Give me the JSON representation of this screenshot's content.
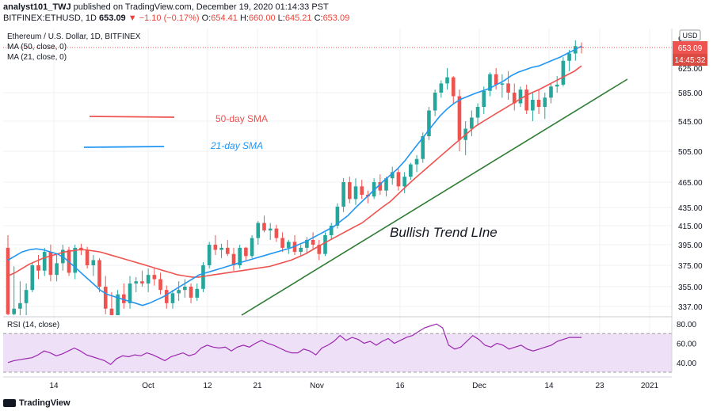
{
  "header": {
    "line1_author": "analyst101_TWJ",
    "line1_rest": "published on TradingView.com, December 19, 2020 01:14:33 PST",
    "line2_symbol": "BITFINEX:ETHUSD, 1D",
    "line2_price": "653.09",
    "line2_change": "▼ −1.10 (−0.17%)",
    "o_label": "O:",
    "o_val": "654.41",
    "h_label": "H:",
    "h_val": "660.00",
    "l_label": "L:",
    "l_val": "645.21",
    "c_label": "C:",
    "c_val": "653.09"
  },
  "legend": {
    "title": "Ethereum / U.S. Dollar, 1D, BITFINEX",
    "ma50": "MA (50, close, 0)",
    "ma21": "MA (21, close, 0)",
    "rsi": "RSI (14, close)"
  },
  "annotations": {
    "sma50_label": "50-day SMA",
    "sma21_label": "21-day SMA",
    "trend_label": "Bullish Trend LIne"
  },
  "price_box": {
    "currency": "USD",
    "last_price": "653.09",
    "countdown": "14:45:32",
    "top_partial": "6",
    "below_partial": "625.00"
  },
  "watermark": "TradingView",
  "colors": {
    "up": "#26a69a",
    "down": "#ef5350",
    "ma50": "#ef5350",
    "ma21": "#2196f3",
    "trend": "#2e7d32",
    "rsi": "#9c27b0",
    "rsi_band": "#ede0f7"
  },
  "chart_data": {
    "type": "candlestick",
    "title": "Ethereum / U.S. Dollar, 1D, BITFINEX",
    "y_ticks": [
      337,
      355,
      375,
      395,
      415,
      435,
      465,
      505,
      545,
      585
    ],
    "y_tick_labels": [
      "337.00",
      "355.00",
      "375.00",
      "395.00",
      "415.00",
      "435.00",
      "465.00",
      "505.00",
      "545.00",
      "585.00"
    ],
    "x_ticks": [
      "14",
      "Oct",
      "12",
      "21",
      "Nov",
      "16",
      "Dec",
      "14",
      "23",
      "2021"
    ],
    "candles": [
      [
        392,
        405,
        320,
        330
      ],
      [
        330,
        374,
        320,
        335
      ],
      [
        335,
        360,
        326,
        340
      ],
      [
        340,
        358,
        328,
        352
      ],
      [
        352,
        378,
        350,
        375
      ],
      [
        375,
        385,
        362,
        370
      ],
      [
        370,
        392,
        365,
        388
      ],
      [
        388,
        395,
        360,
        366
      ],
      [
        366,
        385,
        360,
        377
      ],
      [
        377,
        395,
        370,
        390
      ],
      [
        390,
        393,
        365,
        368
      ],
      [
        368,
        395,
        362,
        392
      ],
      [
        392,
        396,
        385,
        390
      ],
      [
        390,
        393,
        372,
        375
      ],
      [
        375,
        385,
        365,
        380
      ],
      [
        380,
        382,
        350,
        355
      ],
      [
        355,
        365,
        330,
        335
      ],
      [
        335,
        350,
        305,
        325
      ],
      [
        325,
        352,
        320,
        348
      ],
      [
        348,
        358,
        335,
        340
      ],
      [
        340,
        365,
        335,
        358
      ],
      [
        358,
        364,
        350,
        360
      ],
      [
        360,
        370,
        355,
        358
      ],
      [
        358,
        372,
        350,
        366
      ],
      [
        366,
        372,
        356,
        362
      ],
      [
        362,
        368,
        348,
        352
      ],
      [
        352,
        356,
        335,
        340
      ],
      [
        340,
        352,
        335,
        349
      ],
      [
        349,
        360,
        342,
        352
      ],
      [
        352,
        362,
        345,
        355
      ],
      [
        355,
        358,
        340,
        345
      ],
      [
        345,
        358,
        342,
        353
      ],
      [
        353,
        378,
        350,
        375
      ],
      [
        375,
        398,
        372,
        395
      ],
      [
        395,
        405,
        385,
        390
      ],
      [
        390,
        396,
        382,
        392
      ],
      [
        392,
        400,
        384,
        386
      ],
      [
        386,
        392,
        370,
        375
      ],
      [
        375,
        395,
        372,
        392
      ],
      [
        392,
        393,
        380,
        384
      ],
      [
        384,
        405,
        382,
        402
      ],
      [
        402,
        420,
        395,
        418
      ],
      [
        418,
        426,
        408,
        410
      ],
      [
        410,
        418,
        400,
        412
      ],
      [
        412,
        416,
        398,
        402
      ],
      [
        402,
        408,
        388,
        392
      ],
      [
        392,
        400,
        386,
        398
      ],
      [
        398,
        405,
        385,
        388
      ],
      [
        388,
        395,
        384,
        392
      ],
      [
        392,
        403,
        386,
        400
      ],
      [
        400,
        408,
        390,
        395
      ],
      [
        395,
        400,
        380,
        386
      ],
      [
        386,
        408,
        384,
        405
      ],
      [
        405,
        418,
        400,
        415
      ],
      [
        415,
        440,
        412,
        436
      ],
      [
        436,
        470,
        430,
        465
      ],
      [
        465,
        472,
        440,
        445
      ],
      [
        445,
        470,
        438,
        460
      ],
      [
        460,
        468,
        445,
        450
      ],
      [
        450,
        455,
        440,
        448
      ],
      [
        448,
        470,
        445,
        465
      ],
      [
        465,
        475,
        450,
        455
      ],
      [
        455,
        472,
        448,
        470
      ],
      [
        470,
        485,
        462,
        478
      ],
      [
        478,
        482,
        455,
        460
      ],
      [
        460,
        478,
        452,
        472
      ],
      [
        472,
        490,
        468,
        488
      ],
      [
        488,
        500,
        478,
        495
      ],
      [
        495,
        530,
        490,
        525
      ],
      [
        525,
        565,
        520,
        560
      ],
      [
        560,
        590,
        552,
        585
      ],
      [
        585,
        605,
        578,
        600
      ],
      [
        600,
        625,
        590,
        610
      ],
      [
        610,
        612,
        570,
        580
      ],
      [
        580,
        590,
        505,
        520
      ],
      [
        520,
        545,
        500,
        535
      ],
      [
        535,
        560,
        525,
        550
      ],
      [
        550,
        570,
        540,
        565
      ],
      [
        565,
        595,
        555,
        588
      ],
      [
        588,
        618,
        580,
        615
      ],
      [
        615,
        625,
        590,
        598
      ],
      [
        598,
        615,
        578,
        600
      ],
      [
        600,
        620,
        575,
        585
      ],
      [
        585,
        600,
        560,
        570
      ],
      [
        570,
        595,
        565,
        590
      ],
      [
        590,
        598,
        555,
        560
      ],
      [
        560,
        585,
        545,
        575
      ],
      [
        575,
        590,
        555,
        565
      ],
      [
        565,
        585,
        548,
        578
      ],
      [
        578,
        600,
        570,
        595
      ],
      [
        595,
        612,
        585,
        598
      ],
      [
        598,
        640,
        595,
        635
      ],
      [
        635,
        650,
        620,
        645
      ],
      [
        645,
        663,
        635,
        655
      ],
      [
        654,
        660,
        645,
        653
      ]
    ],
    "ma21": [
      380,
      384,
      388,
      390,
      391,
      390,
      388,
      386,
      382,
      376,
      370,
      364,
      358,
      352,
      348,
      346,
      344,
      342,
      340,
      338,
      340,
      343,
      346,
      350,
      354,
      358,
      362,
      366,
      368,
      370,
      372,
      374,
      376,
      378,
      380,
      382,
      384,
      386,
      388,
      390,
      392,
      395,
      398,
      402,
      406,
      410,
      414,
      420,
      426,
      434,
      442,
      450,
      458,
      466,
      474,
      482,
      492,
      504,
      516,
      528,
      540,
      552,
      562,
      570,
      576,
      580,
      584,
      588,
      592,
      598,
      604,
      612,
      618,
      622,
      626,
      628,
      632,
      636,
      640,
      645,
      650,
      655
    ],
    "ma50": [
      365,
      368,
      372,
      376,
      379,
      382,
      384,
      386,
      388,
      389,
      390,
      390,
      389,
      388,
      386,
      384,
      382,
      380,
      378,
      376,
      374,
      372,
      370,
      368,
      366,
      365,
      364,
      364,
      365,
      366,
      367,
      368,
      369,
      370,
      371,
      372,
      373,
      374,
      376,
      378,
      380,
      383,
      386,
      390,
      394,
      398,
      402,
      406,
      410,
      414,
      418,
      424,
      430,
      436,
      442,
      450,
      458,
      466,
      474,
      482,
      490,
      498,
      506,
      514,
      522,
      530,
      538,
      544,
      550,
      556,
      562,
      568,
      574,
      580,
      585,
      590,
      596,
      602,
      608,
      614,
      620,
      628
    ],
    "trend_line": {
      "from": [
        0,
        320
      ],
      "to": [
        48,
        600
      ]
    },
    "rsi_axis_ticks": [
      40,
      60,
      80
    ],
    "rsi": [
      40,
      42,
      43,
      44,
      45,
      48,
      52,
      50,
      47,
      49,
      52,
      55,
      52,
      48,
      46,
      44,
      42,
      38,
      44,
      47,
      46,
      48,
      47,
      50,
      48,
      45,
      42,
      46,
      48,
      50,
      47,
      49,
      55,
      58,
      56,
      55,
      56,
      52,
      56,
      58,
      56,
      60,
      63,
      60,
      58,
      55,
      52,
      50,
      50,
      54,
      52,
      48,
      55,
      58,
      62,
      68,
      63,
      66,
      64,
      60,
      62,
      58,
      62,
      65,
      60,
      63,
      66,
      68,
      72,
      76,
      78,
      80,
      76,
      58,
      54,
      56,
      62,
      68,
      64,
      58,
      56,
      60,
      58,
      54,
      56,
      58,
      54,
      52,
      54,
      56,
      58,
      62,
      64,
      66,
      66,
      66
    ],
    "current_price": 653.09
  }
}
